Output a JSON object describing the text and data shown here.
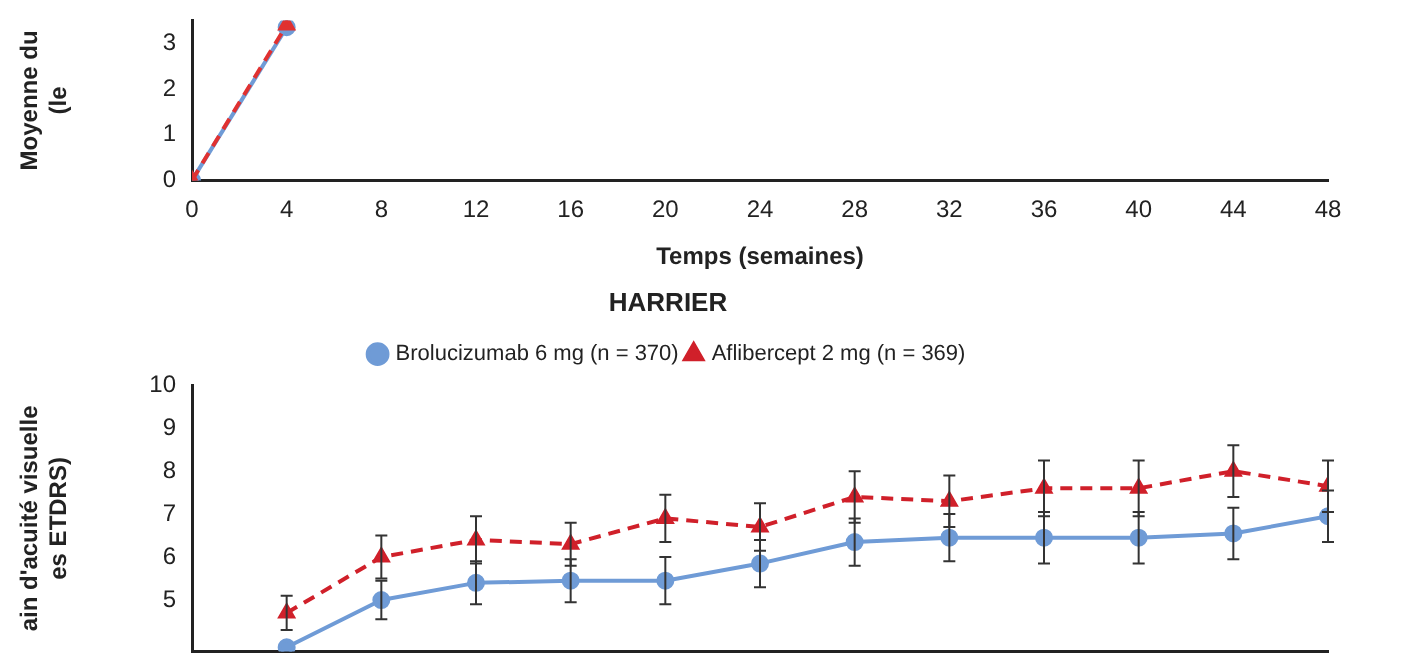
{
  "chart_data": [
    {
      "type": "line",
      "xlabel": "Temps (semaines)",
      "ylabel": "Moyenne du\n(le",
      "xlim": [
        0,
        48
      ],
      "xticks": [
        0,
        4,
        8,
        12,
        16,
        20,
        24,
        28,
        32,
        36,
        40,
        44,
        48
      ],
      "ylim": [
        0,
        3.5
      ],
      "yticks": [
        0,
        1,
        2,
        3
      ],
      "grid": false,
      "legend": false,
      "series": [
        {
          "color": "#e03131",
          "marker": "triangle",
          "line_style": "dashed",
          "x": [
            0,
            4
          ],
          "values": [
            0,
            3.4
          ]
        },
        {
          "color": "#6f9bd6",
          "marker": "circle",
          "line_style": "solid",
          "x": [
            0,
            4
          ],
          "values": [
            0,
            3.35
          ]
        }
      ]
    },
    {
      "type": "line",
      "title": "HARRIER",
      "ylabel": "ain d'acuité visuelle\nes ETDRS)",
      "xlim": [
        0,
        48
      ],
      "ylim": [
        3.8,
        10
      ],
      "yticks": [
        5,
        6,
        7,
        8,
        9,
        10
      ],
      "tick_labels": "y",
      "grid": false,
      "legend": "top",
      "series": [
        {
          "name": "Brolucizumab 6 mg (n = 370)",
          "color": "#6f9bd6",
          "marker": "circle",
          "line_style": "solid",
          "x": [
            4,
            8,
            12,
            16,
            20,
            24,
            28,
            32,
            36,
            40,
            44,
            48
          ],
          "values": [
            3.9,
            5.0,
            5.4,
            5.45,
            5.45,
            5.85,
            6.35,
            6.45,
            6.45,
            6.45,
            6.55,
            6.95
          ],
          "errors": [
            null,
            0.45,
            0.5,
            0.5,
            0.55,
            0.55,
            0.55,
            0.55,
            0.6,
            0.6,
            0.6,
            0.6
          ]
        },
        {
          "name": "Aflibercept 2 mg (n = 369)",
          "color": "#d0202a",
          "marker": "triangle",
          "line_style": "dashed",
          "x": [
            4,
            8,
            12,
            16,
            20,
            24,
            28,
            32,
            36,
            40,
            44,
            48
          ],
          "values": [
            4.7,
            6.0,
            6.4,
            6.3,
            6.9,
            6.7,
            7.4,
            7.3,
            7.6,
            7.6,
            8.0,
            7.65
          ],
          "errors": [
            0.4,
            0.5,
            0.55,
            0.5,
            0.55,
            0.55,
            0.6,
            0.6,
            0.65,
            0.65,
            0.6,
            0.6
          ]
        }
      ]
    }
  ]
}
